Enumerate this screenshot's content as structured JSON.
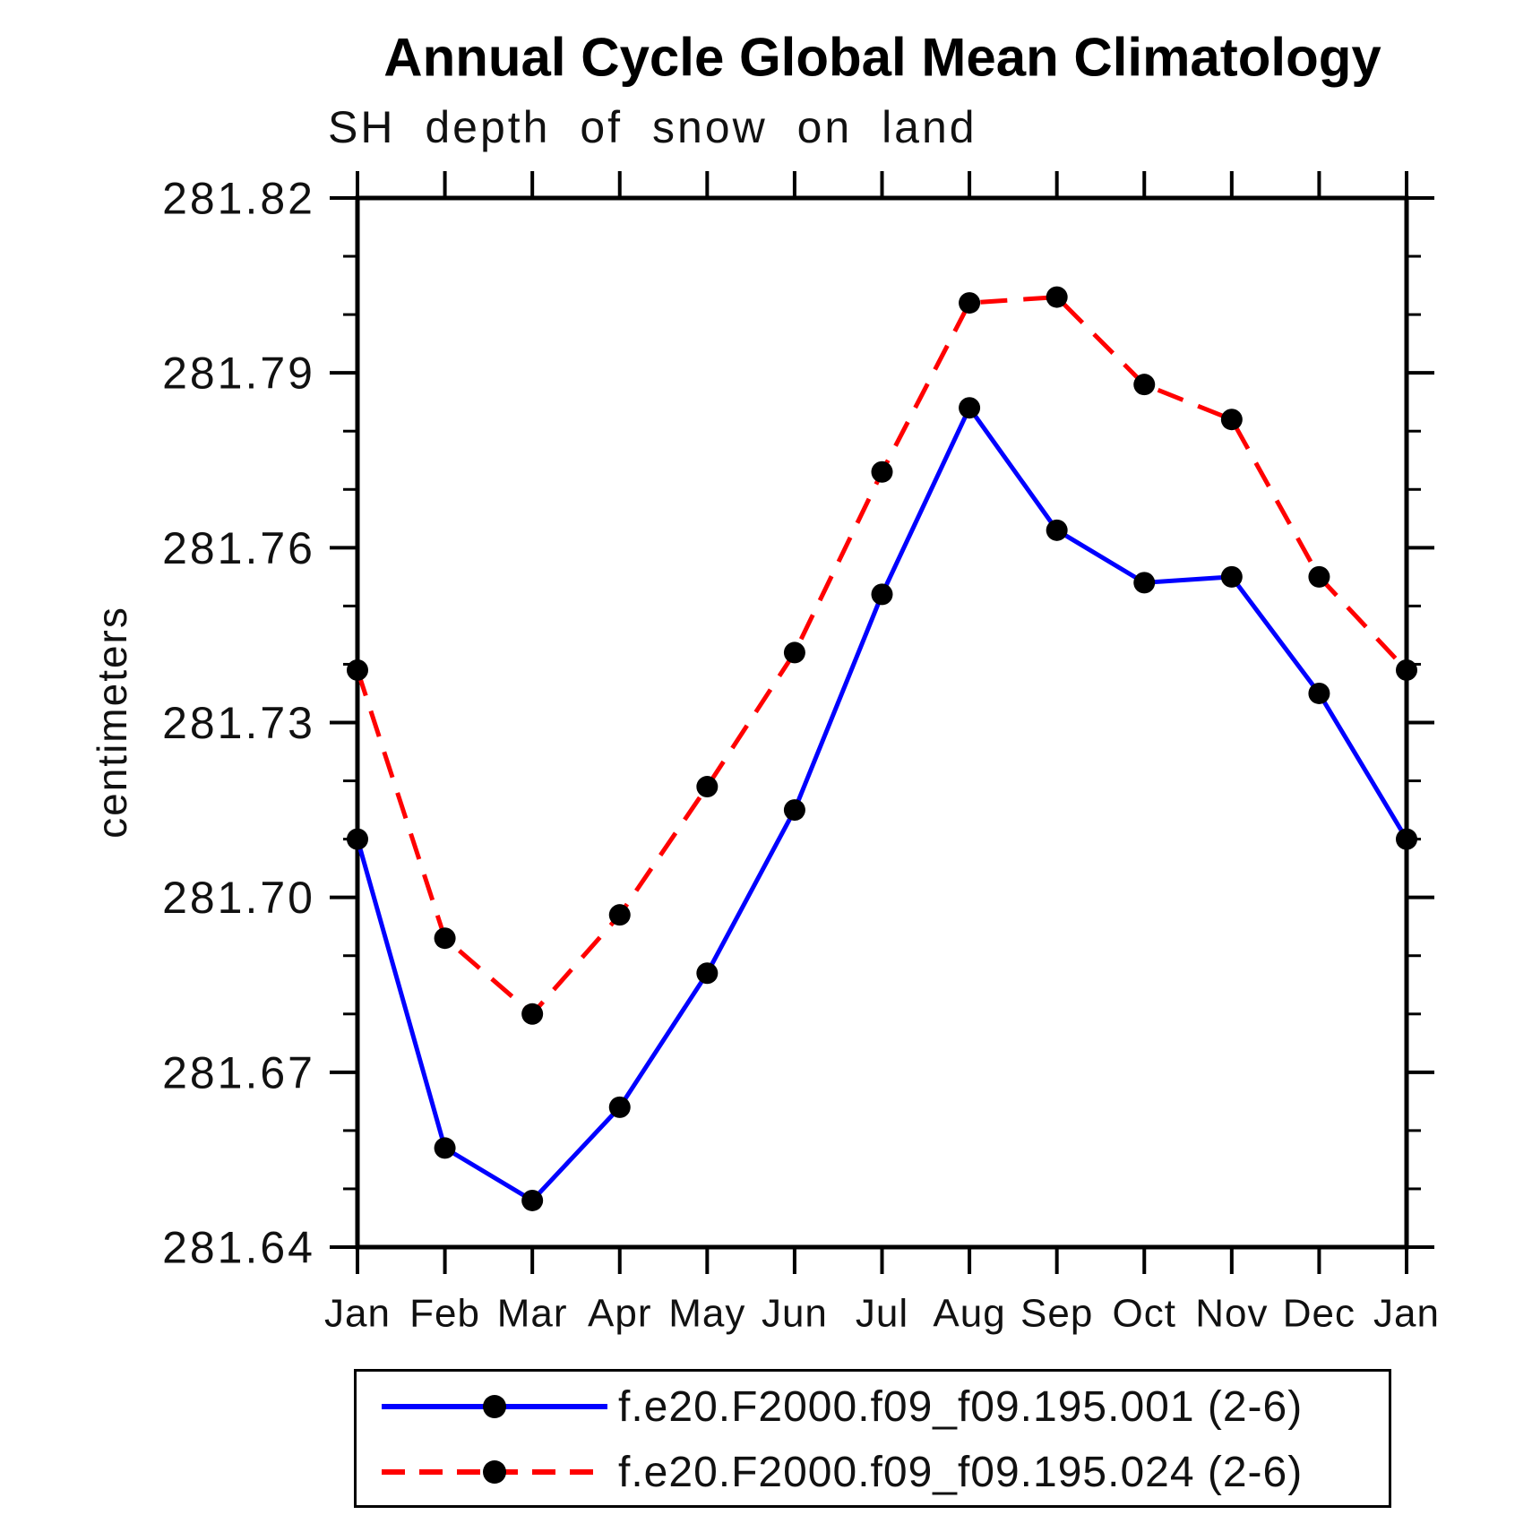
{
  "title": "Annual Cycle Global Mean Climatology",
  "subtitle": "SH depth of snow on land",
  "ylabel": "centimeters",
  "axis_color": "#000000",
  "marker_color": "#000000",
  "chart_data": {
    "type": "line",
    "title": "Annual Cycle Global Mean Climatology",
    "subtitle": "SH depth of snow on land",
    "xlabel": "",
    "ylabel": "centimeters",
    "grid": false,
    "legend_position": "bottom",
    "ylim": [
      281.64,
      281.82
    ],
    "y_ticks_major": [
      281.64,
      281.67,
      281.7,
      281.73,
      281.76,
      281.79,
      281.82
    ],
    "y_tick_labels": [
      "281.64",
      "281.67",
      "281.70",
      "281.73",
      "281.76",
      "281.79",
      "281.82"
    ],
    "y_minor_step": 0.01,
    "x_categories": [
      "Jan",
      "Feb",
      "Mar",
      "Apr",
      "May",
      "Jun",
      "Jul",
      "Aug",
      "Sep",
      "Oct",
      "Nov",
      "Dec",
      "Jan"
    ],
    "series": [
      {
        "name": "f.e20.F2000.f09_f09.195.001 (2-6)",
        "color": "#0000ff",
        "style": "solid",
        "marker": "circle",
        "marker_color": "#000000",
        "values": [
          281.71,
          281.657,
          281.648,
          281.664,
          281.687,
          281.715,
          281.752,
          281.784,
          281.763,
          281.754,
          281.755,
          281.735,
          281.71
        ]
      },
      {
        "name": "f.e20.F2000.f09_f09.195.024 (2-6)",
        "color": "#ff0000",
        "style": "dashed",
        "marker": "circle",
        "marker_color": "#000000",
        "values": [
          281.739,
          281.693,
          281.68,
          281.697,
          281.719,
          281.742,
          281.773,
          281.802,
          281.803,
          281.788,
          281.782,
          281.755,
          281.739
        ]
      }
    ]
  }
}
